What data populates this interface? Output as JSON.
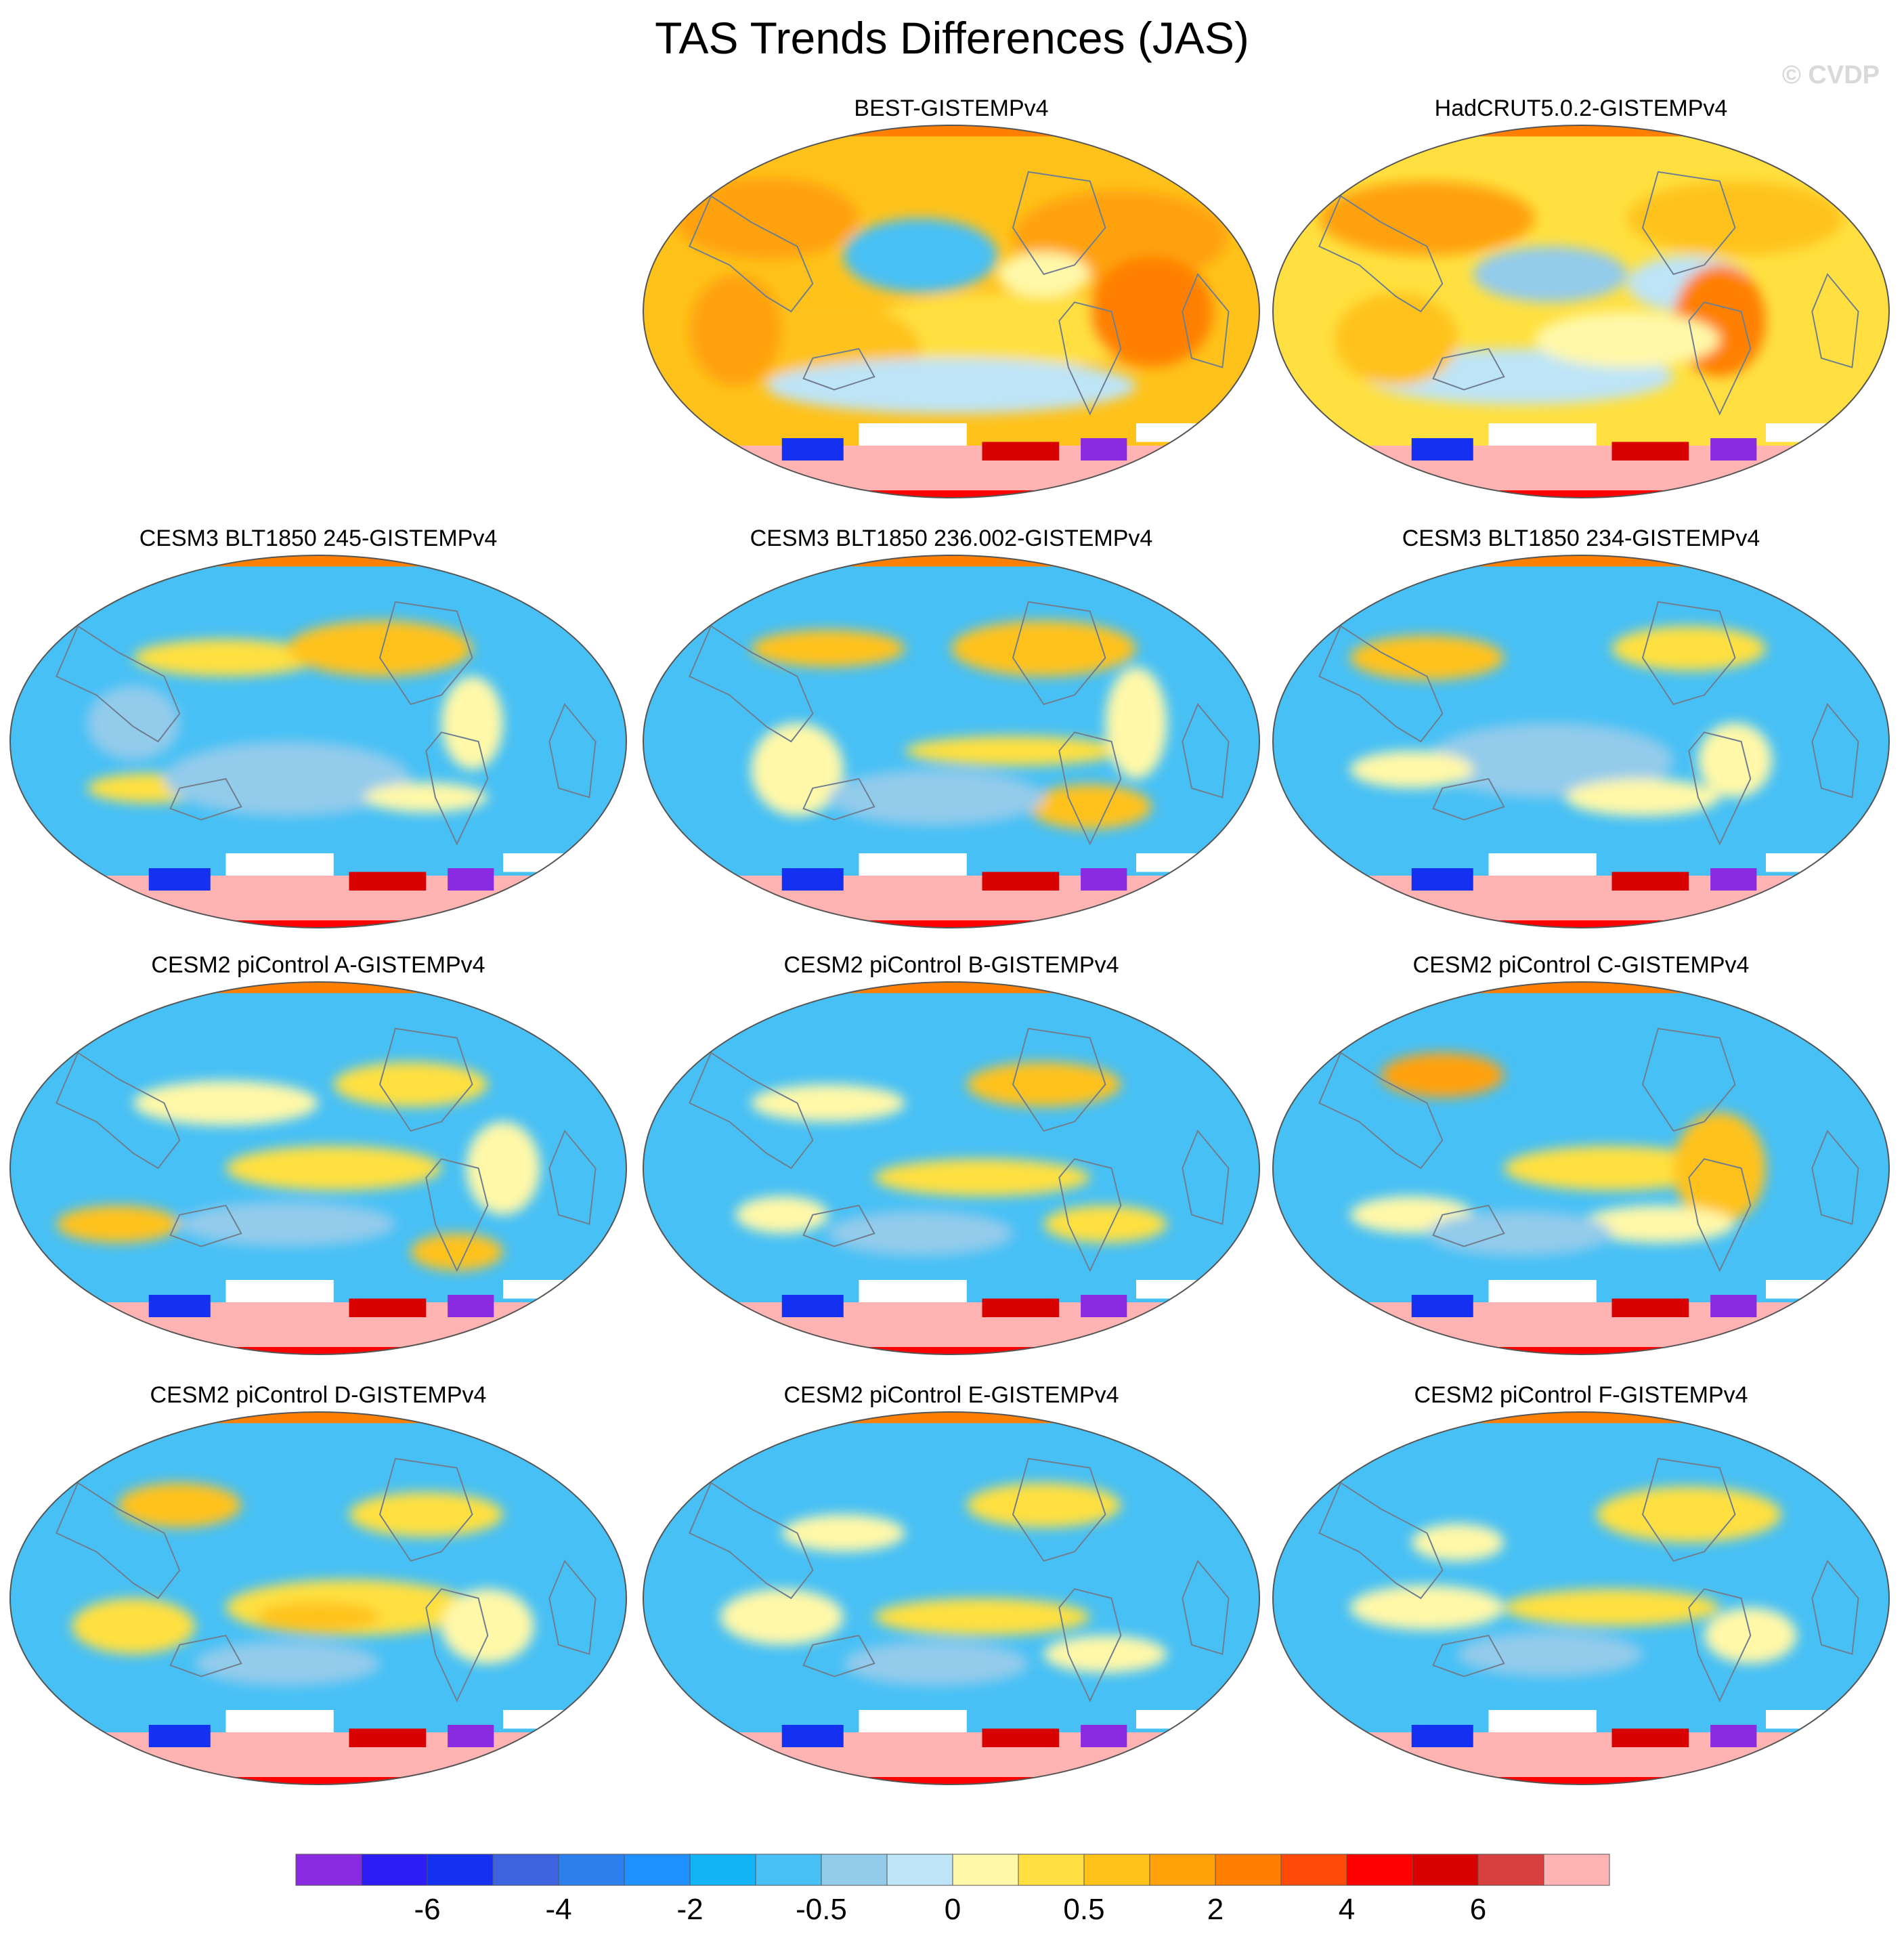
{
  "title": "TAS Trends Differences (JAS)",
  "watermark": "© CVDP",
  "chart_data": {
    "type": "heatmap",
    "projection": "Robinson (Pacific-centered), global maps",
    "panels": [
      {
        "label": "BEST-GISTEMPv4",
        "pattern": "warm"
      },
      {
        "label": "HadCRUT5.0.2-GISTEMPv4",
        "pattern": "warm2"
      },
      {
        "label": "CESM3 BLT1850 245-GISTEMPv4",
        "pattern": "cool1"
      },
      {
        "label": "CESM3 BLT1850 236.002-GISTEMPv4",
        "pattern": "cool2"
      },
      {
        "label": "CESM3 BLT1850 234-GISTEMPv4",
        "pattern": "cool3"
      },
      {
        "label": "CESM2 piControl A-GISTEMPv4",
        "pattern": "mix1"
      },
      {
        "label": "CESM2 piControl B-GISTEMPv4",
        "pattern": "mix2"
      },
      {
        "label": "CESM2 piControl C-GISTEMPv4",
        "pattern": "mix3"
      },
      {
        "label": "CESM2 piControl D-GISTEMPv4",
        "pattern": "mix4"
      },
      {
        "label": "CESM2 piControl E-GISTEMPv4",
        "pattern": "mix5"
      },
      {
        "label": "CESM2 piControl F-GISTEMPv4",
        "pattern": "mix6"
      }
    ],
    "colorbar": {
      "colors": [
        "#8a2be2",
        "#2e1cf5",
        "#1430f0",
        "#3d63e0",
        "#2c7fec",
        "#1e90ff",
        "#13b4f6",
        "#47c0f5",
        "#93cbeb",
        "#bde4f7",
        "#fff8a8",
        "#ffe040",
        "#ffc21a",
        "#ffa20a",
        "#ff8000",
        "#ff4a0a",
        "#ff0000",
        "#d90000",
        "#d84040",
        "#ffb3b3"
      ],
      "tick_labels": [
        "-6",
        "-4",
        "-2",
        "-0.5",
        "0",
        "0.5",
        "2",
        "4",
        "6"
      ],
      "tick_after_index": [
        1,
        3,
        5,
        7,
        9,
        11,
        13,
        15,
        17
      ]
    }
  }
}
